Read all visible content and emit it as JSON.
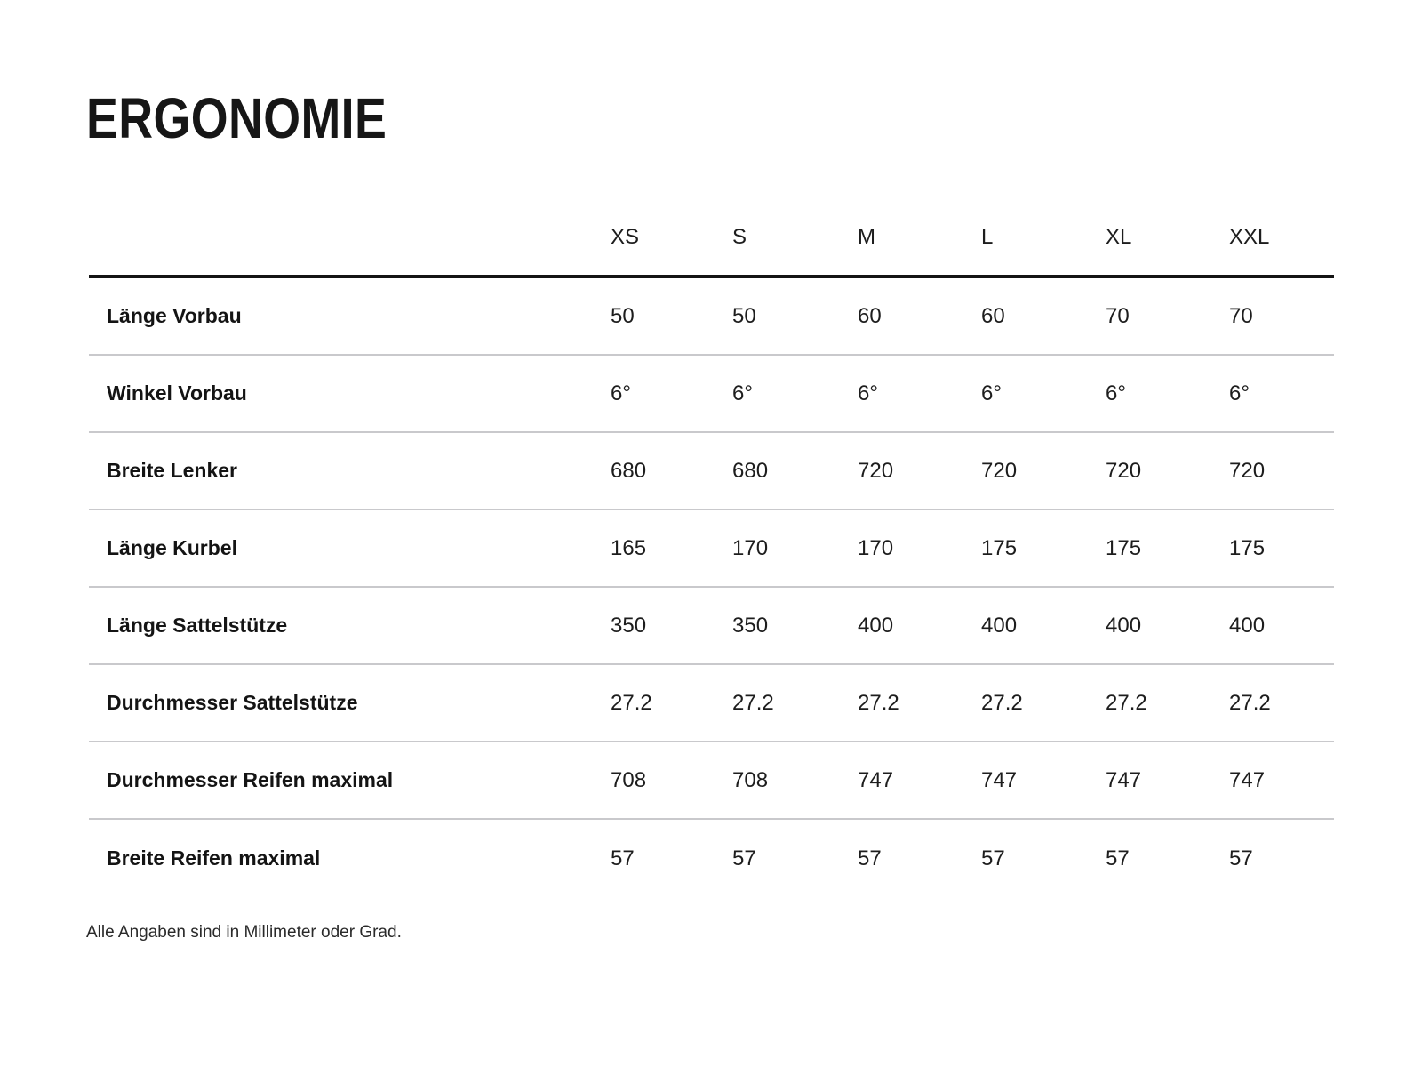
{
  "page": {
    "title": "ERGONOMIE",
    "footnote": "Alle Angaben sind in Millimeter oder Grad."
  },
  "table": {
    "columns": [
      "XS",
      "S",
      "M",
      "L",
      "XL",
      "XXL"
    ],
    "rows": [
      {
        "label": "Länge Vorbau",
        "values": [
          "50",
          "50",
          "60",
          "60",
          "70",
          "70"
        ]
      },
      {
        "label": "Winkel Vorbau",
        "values": [
          "6°",
          "6°",
          "6°",
          "6°",
          "6°",
          "6°"
        ]
      },
      {
        "label": "Breite Lenker",
        "values": [
          "680",
          "680",
          "720",
          "720",
          "720",
          "720"
        ]
      },
      {
        "label": "Länge Kurbel",
        "values": [
          "165",
          "170",
          "170",
          "175",
          "175",
          "175"
        ]
      },
      {
        "label": "Länge Sattelstütze",
        "values": [
          "350",
          "350",
          "400",
          "400",
          "400",
          "400"
        ]
      },
      {
        "label": "Durchmesser Sattelstütze",
        "values": [
          "27.2",
          "27.2",
          "27.2",
          "27.2",
          "27.2",
          "27.2"
        ]
      },
      {
        "label": "Durchmesser Reifen maximal",
        "values": [
          "708",
          "708",
          "747",
          "747",
          "747",
          "747"
        ]
      },
      {
        "label": "Breite Reifen maximal",
        "values": [
          "57",
          "57",
          "57",
          "57",
          "57",
          "57"
        ]
      }
    ]
  },
  "colors": {
    "background": "#ffffff",
    "text": "#1a1a1a",
    "rule_heavy": "#141414",
    "rule_light": "#c9c9cc"
  }
}
